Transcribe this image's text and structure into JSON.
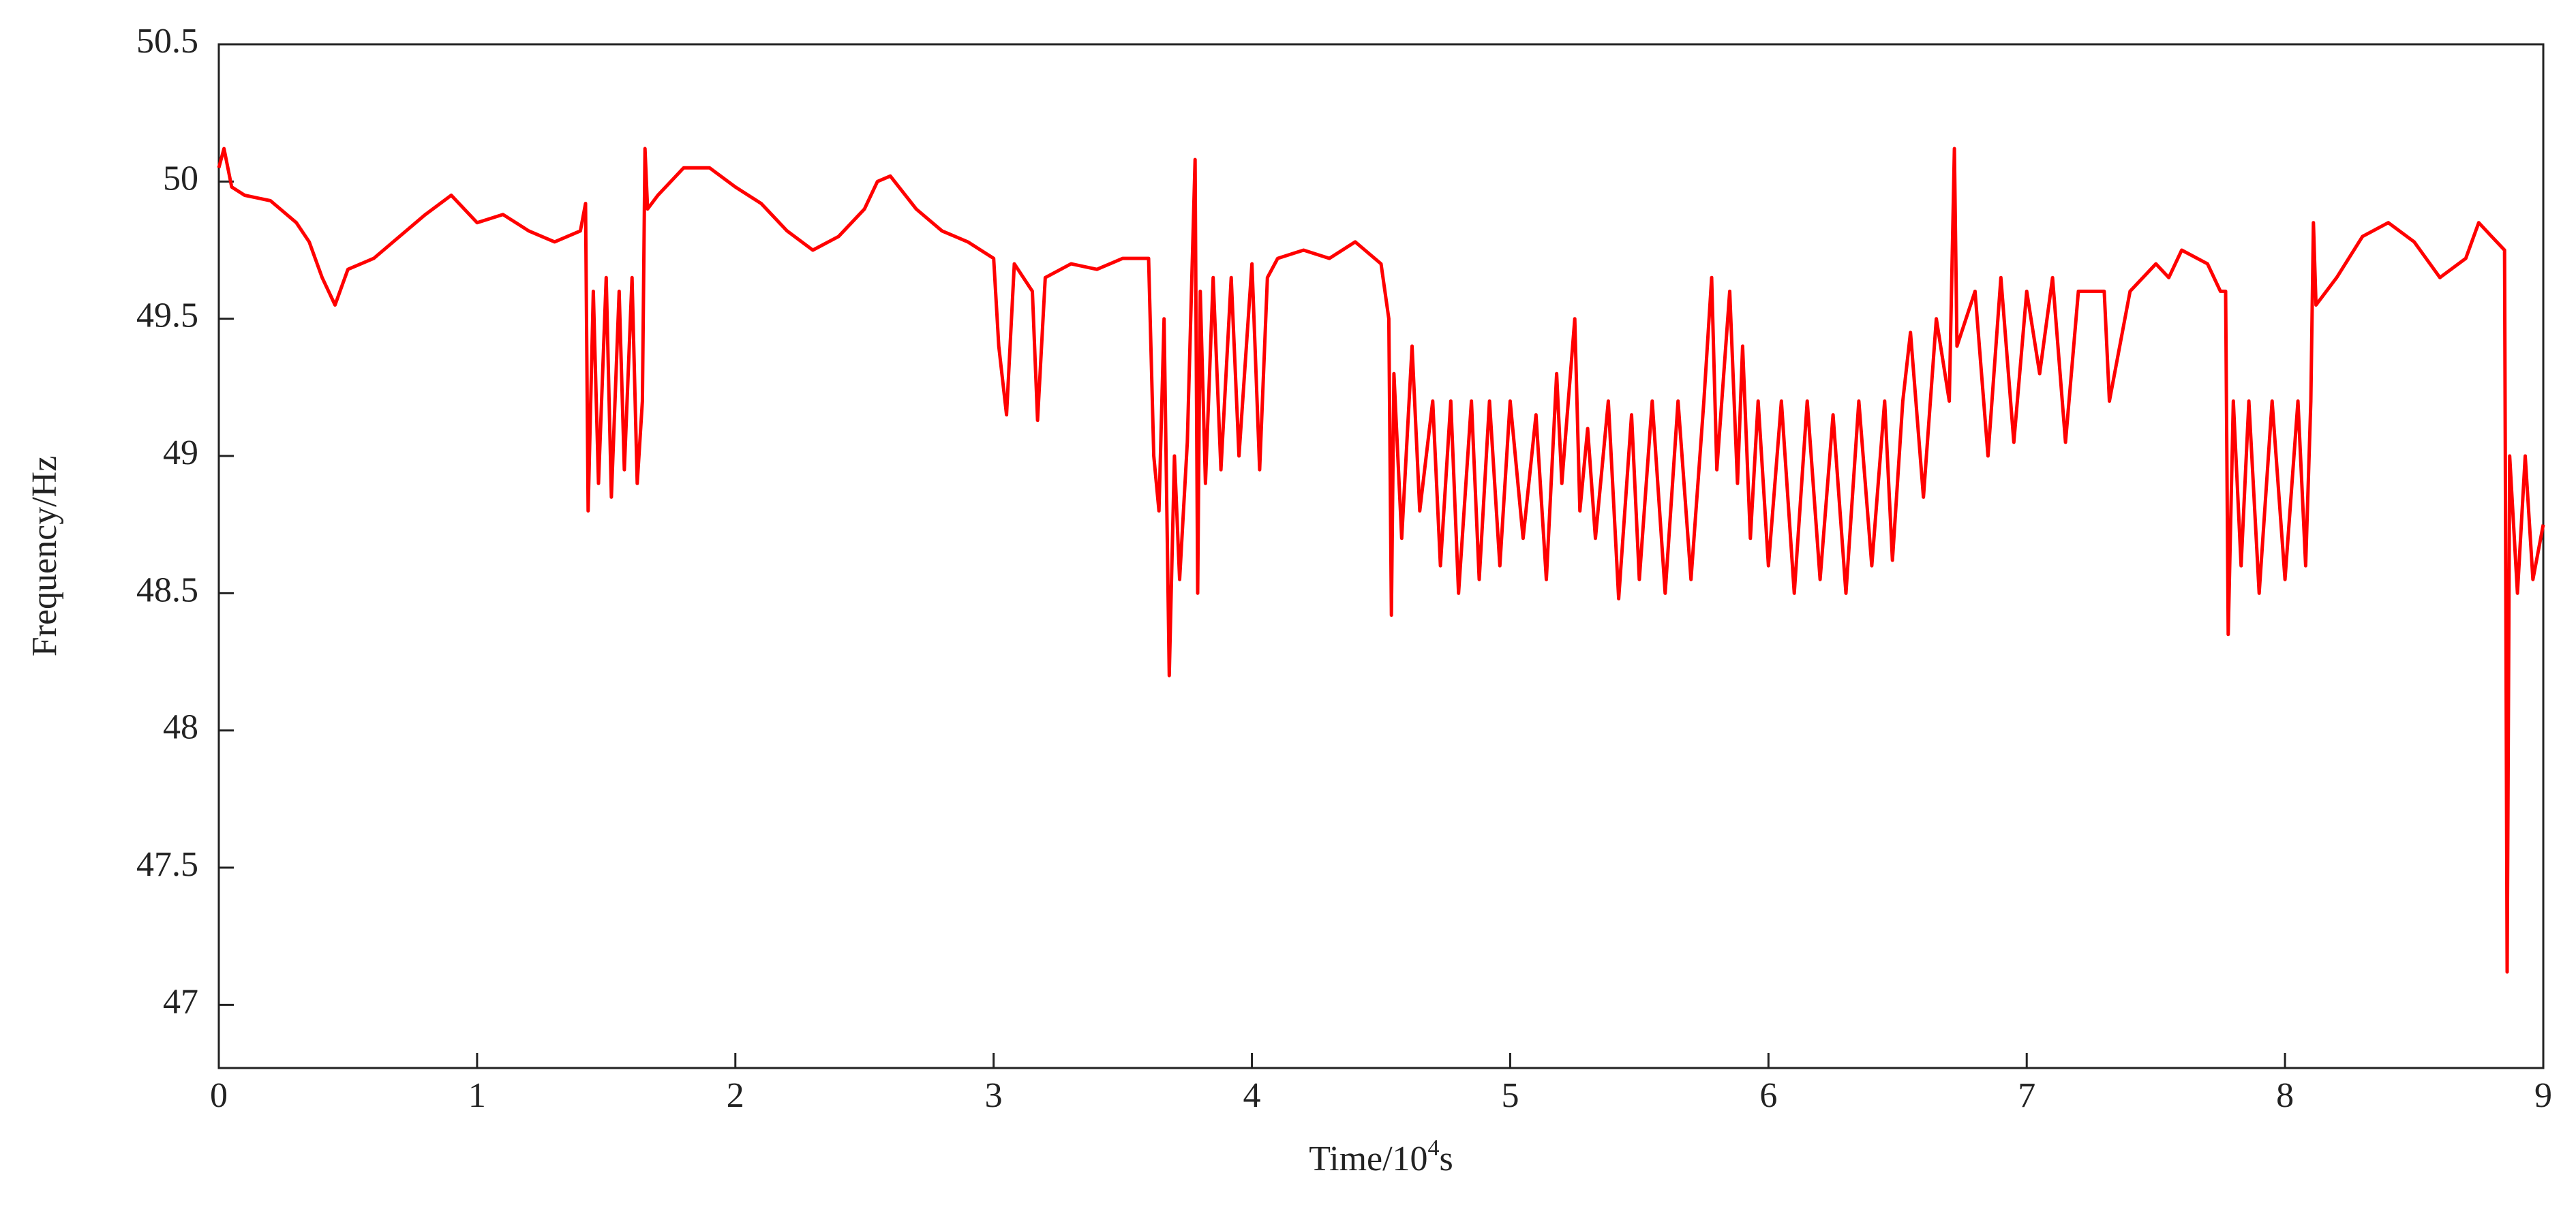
{
  "chart_data": {
    "type": "line",
    "y_label": "Frequency/Hz",
    "x_label": {
      "base": "Time/10",
      "exponent": "4",
      "unit": "s"
    },
    "xlim": [
      0,
      9
    ],
    "xticks": [
      0,
      1,
      2,
      3,
      4,
      5,
      6,
      7,
      8,
      9
    ],
    "ylim": [
      46.77,
      50.5
    ],
    "yticks": [
      47,
      47.5,
      48,
      48.5,
      49,
      49.5,
      50,
      50.5
    ],
    "grid": false,
    "series": [
      {
        "color": "#ff0000",
        "x": [
          0,
          0.02,
          0.05,
          0.1,
          0.2,
          0.3,
          0.35,
          0.4,
          0.45,
          0.5,
          0.6,
          0.7,
          0.8,
          0.9,
          1.0,
          1.1,
          1.2,
          1.3,
          1.4,
          1.42,
          1.43,
          1.45,
          1.47,
          1.5,
          1.52,
          1.55,
          1.57,
          1.6,
          1.62,
          1.64,
          1.65,
          1.66,
          1.7,
          1.8,
          1.9,
          2.0,
          2.1,
          2.2,
          2.3,
          2.4,
          2.5,
          2.55,
          2.6,
          2.7,
          2.8,
          2.9,
          3.0,
          3.02,
          3.05,
          3.08,
          3.15,
          3.17,
          3.2,
          3.3,
          3.4,
          3.5,
          3.6,
          3.62,
          3.64,
          3.66,
          3.68,
          3.7,
          3.72,
          3.75,
          3.78,
          3.79,
          3.8,
          3.82,
          3.85,
          3.88,
          3.92,
          3.95,
          4.0,
          4.03,
          4.06,
          4.1,
          4.2,
          4.3,
          4.4,
          4.5,
          4.53,
          4.54,
          4.55,
          4.58,
          4.62,
          4.65,
          4.7,
          4.73,
          4.77,
          4.8,
          4.85,
          4.88,
          4.92,
          4.96,
          5.0,
          5.05,
          5.1,
          5.14,
          5.18,
          5.2,
          5.25,
          5.27,
          5.3,
          5.33,
          5.38,
          5.42,
          5.47,
          5.5,
          5.55,
          5.6,
          5.65,
          5.7,
          5.75,
          5.78,
          5.8,
          5.85,
          5.88,
          5.9,
          5.93,
          5.96,
          6.0,
          6.05,
          6.1,
          6.15,
          6.2,
          6.25,
          6.3,
          6.35,
          6.4,
          6.45,
          6.48,
          6.52,
          6.55,
          6.6,
          6.65,
          6.7,
          6.72,
          6.73,
          6.8,
          6.85,
          6.9,
          6.95,
          7.0,
          7.05,
          7.1,
          7.15,
          7.2,
          7.3,
          7.32,
          7.4,
          7.5,
          7.55,
          7.6,
          7.7,
          7.75,
          7.77,
          7.78,
          7.8,
          7.83,
          7.86,
          7.9,
          7.95,
          8.0,
          8.05,
          8.08,
          8.1,
          8.11,
          8.12,
          8.2,
          8.3,
          8.4,
          8.5,
          8.6,
          8.7,
          8.75,
          8.8,
          8.85,
          8.86,
          8.87,
          8.9,
          8.93,
          8.96,
          9.0
        ],
        "values": [
          50.05,
          50.12,
          49.98,
          49.95,
          49.93,
          49.85,
          49.78,
          49.65,
          49.55,
          49.68,
          49.72,
          49.8,
          49.88,
          49.95,
          49.85,
          49.88,
          49.82,
          49.78,
          49.82,
          49.92,
          48.8,
          49.6,
          48.9,
          49.65,
          48.85,
          49.6,
          48.95,
          49.65,
          48.9,
          49.2,
          50.12,
          49.9,
          49.95,
          50.05,
          50.05,
          49.98,
          49.92,
          49.82,
          49.75,
          49.8,
          49.9,
          50.0,
          50.02,
          49.9,
          49.82,
          49.78,
          49.72,
          49.4,
          49.15,
          49.7,
          49.6,
          49.13,
          49.65,
          49.7,
          49.68,
          49.72,
          49.72,
          49.0,
          48.8,
          49.5,
          48.2,
          49.0,
          48.55,
          49.05,
          50.08,
          48.5,
          49.6,
          48.9,
          49.65,
          48.95,
          49.65,
          49.0,
          49.7,
          48.95,
          49.65,
          49.72,
          49.75,
          49.72,
          49.78,
          49.7,
          49.5,
          48.42,
          49.3,
          48.7,
          49.4,
          48.8,
          49.2,
          48.6,
          49.2,
          48.5,
          49.2,
          48.55,
          49.2,
          48.6,
          49.2,
          48.7,
          49.15,
          48.55,
          49.3,
          48.9,
          49.5,
          48.8,
          49.1,
          48.7,
          49.2,
          48.48,
          49.15,
          48.55,
          49.2,
          48.5,
          49.2,
          48.55,
          49.2,
          49.65,
          48.95,
          49.6,
          48.9,
          49.4,
          48.7,
          49.2,
          48.6,
          49.2,
          48.5,
          49.2,
          48.55,
          49.15,
          48.5,
          49.2,
          48.6,
          49.2,
          48.62,
          49.2,
          49.45,
          48.85,
          49.5,
          49.2,
          50.12,
          49.4,
          49.6,
          49.0,
          49.65,
          49.05,
          49.6,
          49.3,
          49.65,
          49.05,
          49.6,
          49.6,
          49.2,
          49.6,
          49.7,
          49.65,
          49.75,
          49.7,
          49.6,
          49.6,
          48.35,
          49.2,
          48.6,
          49.2,
          48.5,
          49.2,
          48.55,
          49.2,
          48.6,
          49.2,
          49.85,
          49.55,
          49.65,
          49.8,
          49.85,
          49.78,
          49.65,
          49.72,
          49.85,
          49.8,
          49.75,
          47.12,
          49.0,
          48.5,
          49.0,
          48.55,
          48.75
        ]
      }
    ]
  }
}
